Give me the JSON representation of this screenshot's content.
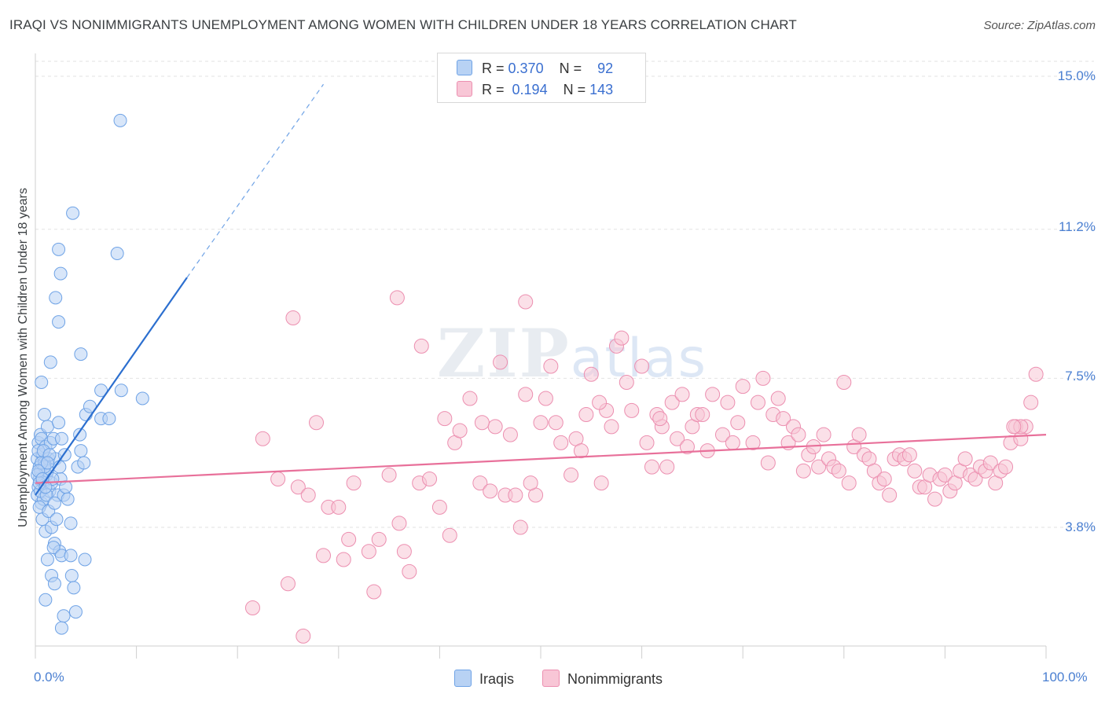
{
  "title": "IRAQI VS NONIMMIGRANTS UNEMPLOYMENT AMONG WOMEN WITH CHILDREN UNDER 18 YEARS CORRELATION CHART",
  "source": "Source: ZipAtlas.com",
  "watermark": {
    "zip": "ZIP",
    "atlas": "atlas"
  },
  "legend": {
    "iraqis": {
      "r_label": "R =",
      "r_value": "0.370",
      "n_label": "N =",
      "n_value": "92"
    },
    "nonimmigrants": {
      "r_label": "R =",
      "r_value": "0.194",
      "n_label": "N =",
      "n_value": "143"
    }
  },
  "bottom_legend": {
    "iraqis": "Iraqis",
    "nonimmigrants": "Nonimmigrants"
  },
  "colors": {
    "iraqis": "#6fa3e6",
    "iraqis_fill": "#b8d2f4",
    "iraqis_line": "#2c6fcf",
    "nonimmigrants": "#ec8fb0",
    "nonimmigrants_fill": "#f8c6d6",
    "nonimmigrants_line": "#e8709a"
  },
  "chart_data": {
    "type": "scatter",
    "title": "IRAQI VS NONIMMIGRANTS UNEMPLOYMENT AMONG WOMEN WITH CHILDREN UNDER 18 YEARS CORRELATION CHART",
    "xlabel": "",
    "ylabel": "Unemployment Among Women with Children Under 18 years",
    "xlim": [
      0,
      100
    ],
    "ylim": [
      0.5,
      15.5
    ],
    "x_tick_labels": [
      "0.0%",
      "100.0%"
    ],
    "y_tick_labels": [
      "3.8%",
      "7.5%",
      "11.2%",
      "15.0%"
    ],
    "y_ticks": [
      3.8,
      7.5,
      11.2,
      15.0
    ],
    "grid": true,
    "legend_position": "top-center",
    "series": [
      {
        "name": "Iraqis",
        "trend": {
          "x": [
            0.0,
            15.0
          ],
          "y": [
            4.6,
            10.0
          ],
          "dashed_to": [
            28.5,
            14.8
          ]
        },
        "points": [
          [
            0.2,
            5.5
          ],
          [
            0.3,
            5.9
          ],
          [
            0.4,
            5.3
          ],
          [
            0.5,
            6.1
          ],
          [
            0.3,
            4.8
          ],
          [
            0.6,
            4.4
          ],
          [
            0.4,
            5.0
          ],
          [
            0.7,
            5.6
          ],
          [
            0.2,
            4.6
          ],
          [
            0.5,
            5.2
          ],
          [
            0.8,
            4.9
          ],
          [
            0.6,
            6.0
          ],
          [
            0.9,
            5.4
          ],
          [
            1.0,
            5.8
          ],
          [
            0.8,
            4.5
          ],
          [
            1.1,
            5.1
          ],
          [
            0.4,
            4.3
          ],
          [
            1.2,
            6.3
          ],
          [
            0.9,
            6.6
          ],
          [
            0.7,
            4.0
          ],
          [
            1.3,
            5.5
          ],
          [
            1.4,
            4.7
          ],
          [
            1.0,
            3.7
          ],
          [
            1.5,
            5.9
          ],
          [
            1.2,
            5.2
          ],
          [
            1.6,
            4.9
          ],
          [
            1.8,
            6.0
          ],
          [
            1.6,
            3.8
          ],
          [
            1.3,
            4.2
          ],
          [
            2.0,
            5.5
          ],
          [
            2.2,
            4.6
          ],
          [
            1.9,
            3.4
          ],
          [
            2.3,
            6.4
          ],
          [
            2.5,
            5.0
          ],
          [
            2.1,
            4.0
          ],
          [
            2.6,
            6.0
          ],
          [
            2.8,
            4.6
          ],
          [
            2.4,
            3.2
          ],
          [
            1.8,
            3.3
          ],
          [
            1.2,
            3.0
          ],
          [
            1.6,
            2.6
          ],
          [
            1.0,
            2.0
          ],
          [
            1.9,
            2.4
          ],
          [
            2.6,
            3.1
          ],
          [
            3.0,
            4.8
          ],
          [
            3.2,
            4.5
          ],
          [
            3.5,
            3.9
          ],
          [
            3.5,
            3.1
          ],
          [
            3.6,
            2.6
          ],
          [
            3.8,
            2.3
          ],
          [
            2.8,
            1.6
          ],
          [
            2.6,
            1.3
          ],
          [
            4.0,
            1.7
          ],
          [
            4.2,
            5.3
          ],
          [
            4.4,
            6.1
          ],
          [
            4.5,
            5.7
          ],
          [
            4.8,
            5.4
          ],
          [
            4.9,
            3.0
          ],
          [
            5.0,
            6.6
          ],
          [
            5.4,
            6.8
          ],
          [
            6.5,
            6.5
          ],
          [
            7.3,
            6.5
          ],
          [
            8.5,
            7.2
          ],
          [
            0.6,
            7.4
          ],
          [
            1.5,
            7.9
          ],
          [
            2.3,
            8.9
          ],
          [
            2.0,
            9.5
          ],
          [
            2.5,
            10.1
          ],
          [
            2.3,
            10.7
          ],
          [
            3.7,
            11.6
          ],
          [
            8.1,
            10.6
          ],
          [
            4.5,
            8.1
          ],
          [
            6.5,
            7.2
          ],
          [
            8.4,
            13.9
          ],
          [
            10.6,
            7.0
          ],
          [
            0.3,
            5.7
          ],
          [
            0.5,
            4.7
          ],
          [
            0.9,
            5.3
          ],
          [
            1.7,
            5.0
          ],
          [
            2.9,
            5.6
          ],
          [
            0.2,
            5.1
          ],
          [
            0.4,
            4.9
          ],
          [
            0.6,
            5.4
          ],
          [
            0.8,
            5.7
          ],
          [
            1.1,
            4.6
          ],
          [
            1.4,
            5.6
          ],
          [
            0.3,
            5.2
          ],
          [
            0.7,
            5.0
          ],
          [
            1.0,
            4.8
          ],
          [
            1.9,
            4.4
          ],
          [
            2.4,
            5.3
          ],
          [
            1.2,
            5.4
          ]
        ]
      },
      {
        "name": "Nonimmigrants",
        "trend": {
          "x": [
            0.0,
            100.0
          ],
          "y": [
            4.9,
            6.1
          ]
        },
        "points": [
          [
            21.5,
            1.8
          ],
          [
            25.5,
            9.0
          ],
          [
            26.5,
            1.1
          ],
          [
            25.0,
            2.4
          ],
          [
            24.0,
            5.0
          ],
          [
            26.0,
            4.8
          ],
          [
            27.0,
            4.6
          ],
          [
            29.0,
            4.3
          ],
          [
            28.5,
            3.1
          ],
          [
            30.0,
            4.3
          ],
          [
            30.5,
            3.0
          ],
          [
            31.0,
            3.5
          ],
          [
            33.0,
            3.2
          ],
          [
            33.5,
            2.2
          ],
          [
            34.0,
            3.5
          ],
          [
            35.0,
            5.1
          ],
          [
            36.0,
            3.9
          ],
          [
            36.5,
            3.2
          ],
          [
            37.0,
            2.7
          ],
          [
            38.0,
            4.9
          ],
          [
            39.0,
            5.0
          ],
          [
            40.0,
            4.3
          ],
          [
            41.0,
            3.6
          ],
          [
            41.5,
            5.9
          ],
          [
            42.0,
            6.2
          ],
          [
            43.0,
            7.0
          ],
          [
            44.0,
            4.9
          ],
          [
            45.0,
            4.7
          ],
          [
            45.5,
            6.3
          ],
          [
            46.0,
            7.9
          ],
          [
            46.5,
            4.6
          ],
          [
            47.0,
            6.1
          ],
          [
            47.5,
            4.6
          ],
          [
            48.0,
            3.8
          ],
          [
            48.5,
            7.1
          ],
          [
            48.5,
            9.4
          ],
          [
            49.5,
            4.6
          ],
          [
            50.0,
            6.4
          ],
          [
            50.5,
            7.0
          ],
          [
            51.0,
            7.8
          ],
          [
            51.5,
            6.4
          ],
          [
            52.0,
            5.9
          ],
          [
            53.0,
            5.1
          ],
          [
            53.5,
            6.0
          ],
          [
            54.0,
            5.7
          ],
          [
            54.5,
            6.6
          ],
          [
            55.0,
            7.6
          ],
          [
            56.0,
            4.9
          ],
          [
            56.5,
            6.7
          ],
          [
            57.0,
            6.3
          ],
          [
            57.5,
            8.3
          ],
          [
            58.0,
            8.5
          ],
          [
            58.5,
            7.4
          ],
          [
            59.0,
            6.7
          ],
          [
            60.0,
            7.8
          ],
          [
            60.5,
            5.9
          ],
          [
            61.0,
            5.3
          ],
          [
            61.5,
            6.6
          ],
          [
            62.0,
            6.3
          ],
          [
            62.5,
            5.3
          ],
          [
            63.0,
            6.9
          ],
          [
            63.5,
            6.0
          ],
          [
            64.0,
            7.1
          ],
          [
            64.5,
            5.8
          ],
          [
            65.0,
            6.3
          ],
          [
            65.5,
            6.6
          ],
          [
            66.0,
            6.6
          ],
          [
            66.5,
            5.7
          ],
          [
            67.0,
            7.1
          ],
          [
            68.0,
            6.1
          ],
          [
            68.5,
            6.9
          ],
          [
            69.0,
            5.9
          ],
          [
            69.5,
            6.4
          ],
          [
            70.0,
            7.3
          ],
          [
            71.0,
            5.9
          ],
          [
            71.5,
            6.9
          ],
          [
            72.0,
            7.5
          ],
          [
            72.5,
            5.4
          ],
          [
            73.0,
            6.6
          ],
          [
            73.5,
            7.0
          ],
          [
            74.0,
            6.5
          ],
          [
            74.5,
            5.9
          ],
          [
            75.0,
            6.3
          ],
          [
            75.5,
            6.1
          ],
          [
            76.0,
            5.2
          ],
          [
            76.5,
            5.6
          ],
          [
            77.0,
            5.8
          ],
          [
            77.5,
            5.3
          ],
          [
            78.0,
            6.1
          ],
          [
            78.5,
            5.5
          ],
          [
            79.0,
            5.3
          ],
          [
            79.5,
            5.2
          ],
          [
            80.0,
            7.4
          ],
          [
            80.5,
            4.9
          ],
          [
            81.0,
            5.8
          ],
          [
            81.5,
            6.1
          ],
          [
            82.0,
            5.6
          ],
          [
            82.5,
            5.5
          ],
          [
            83.0,
            5.2
          ],
          [
            83.5,
            4.9
          ],
          [
            84.0,
            5.0
          ],
          [
            84.5,
            4.6
          ],
          [
            85.0,
            5.5
          ],
          [
            85.5,
            5.6
          ],
          [
            86.0,
            5.5
          ],
          [
            86.5,
            5.6
          ],
          [
            87.0,
            5.2
          ],
          [
            87.5,
            4.8
          ],
          [
            88.0,
            4.8
          ],
          [
            88.5,
            5.1
          ],
          [
            89.0,
            4.5
          ],
          [
            89.5,
            5.0
          ],
          [
            90.0,
            5.1
          ],
          [
            90.5,
            4.7
          ],
          [
            91.0,
            4.9
          ],
          [
            91.5,
            5.2
          ],
          [
            92.0,
            5.5
          ],
          [
            92.5,
            5.1
          ],
          [
            93.0,
            5.0
          ],
          [
            93.5,
            5.3
          ],
          [
            94.0,
            5.2
          ],
          [
            94.5,
            5.4
          ],
          [
            95.0,
            4.9
          ],
          [
            95.5,
            5.2
          ],
          [
            96.0,
            5.3
          ],
          [
            96.5,
            5.9
          ],
          [
            97.0,
            6.3
          ],
          [
            97.5,
            6.0
          ],
          [
            98.0,
            6.3
          ],
          [
            98.5,
            6.9
          ],
          [
            99.0,
            7.6
          ],
          [
            97.5,
            6.3
          ],
          [
            96.8,
            6.3
          ],
          [
            61.8,
            6.5
          ],
          [
            55.8,
            6.9
          ],
          [
            49.0,
            4.9
          ],
          [
            44.2,
            6.4
          ],
          [
            40.5,
            6.5
          ],
          [
            38.2,
            8.3
          ],
          [
            35.8,
            9.5
          ],
          [
            31.5,
            4.9
          ],
          [
            27.8,
            6.4
          ],
          [
            22.5,
            6.0
          ]
        ]
      }
    ]
  }
}
